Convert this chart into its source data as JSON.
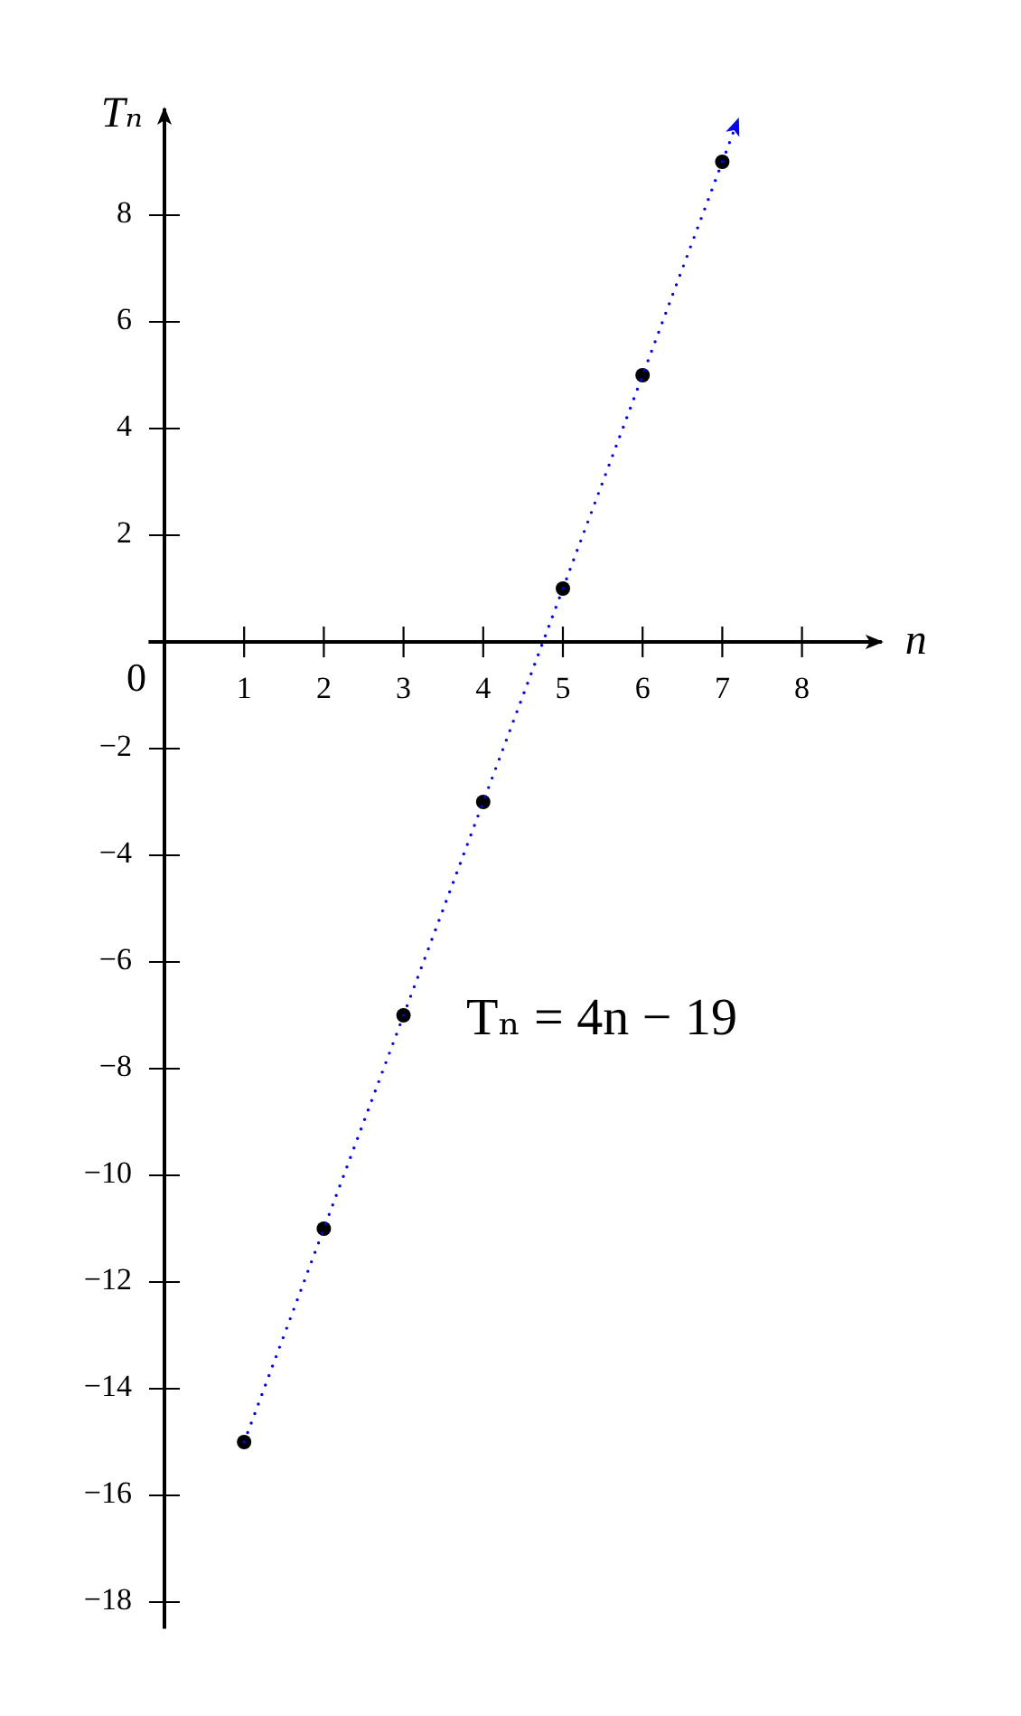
{
  "chart_data": {
    "type": "scatter",
    "xlabel": "n",
    "ylabel": "Tₙ",
    "x": [
      1,
      2,
      3,
      4,
      5,
      6,
      7
    ],
    "series": [
      {
        "color": "#000000",
        "marker": "circle",
        "values": [
          -15,
          -11,
          -7,
          -3,
          1,
          5,
          9
        ]
      },
      {
        "type": "line",
        "color": "#0000ff",
        "line_style": "dotted",
        "marker": "none",
        "x": [
          1,
          7.2
        ],
        "values": [
          -15,
          9.8
        ]
      }
    ],
    "xlim": [
      -0.2,
      9
    ],
    "ylim": [
      -18.5,
      10
    ],
    "xticks": [
      1,
      2,
      3,
      4,
      5,
      6,
      7,
      8
    ],
    "yticks": [
      -18,
      -16,
      -14,
      -12,
      -10,
      -8,
      -6,
      -4,
      -2,
      2,
      4,
      6,
      8
    ],
    "annotations": [
      "0",
      "Tₙ = 4n − 19"
    ]
  }
}
